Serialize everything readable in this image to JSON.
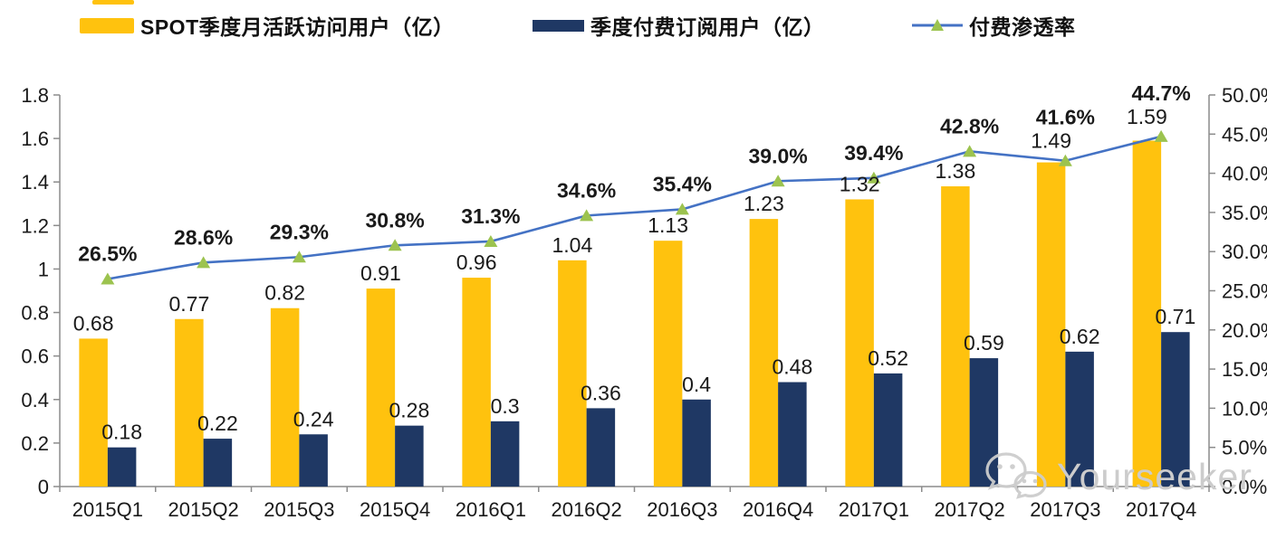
{
  "legend": [
    {
      "label": "SPOT季度月活跃访问用户（亿）",
      "swatch": "bar",
      "color": "#FFC20E"
    },
    {
      "label": "季度付费订阅用户（亿）",
      "swatch": "bar",
      "color": "#1F3864"
    },
    {
      "label": "付费渗透率",
      "swatch": "line",
      "color": "#4472C4",
      "marker_color": "#9CC34F"
    }
  ],
  "colors": {
    "mau_bar": "#FFC20E",
    "subs_bar": "#1F3864",
    "line": "#4472C4",
    "marker": "#9CC34F",
    "axis": "#8C8C8C",
    "text": "#1A1A1A",
    "watermark": "#CCCCCC"
  },
  "watermark": {
    "text": "Yourseeker",
    "icon": "wechat-icon"
  },
  "chart_data": {
    "type": "bar+line-combo",
    "categories": [
      "2015Q1",
      "2015Q2",
      "2015Q3",
      "2015Q4",
      "2016Q1",
      "2016Q2",
      "2016Q3",
      "2016Q4",
      "2017Q1",
      "2017Q2",
      "2017Q3",
      "2017Q4"
    ],
    "series": [
      {
        "name": "SPOT季度月活跃访问用户（亿）",
        "type": "bar",
        "axis": "left",
        "color": "#FFC20E",
        "values": [
          0.68,
          0.77,
          0.82,
          0.91,
          0.96,
          1.04,
          1.13,
          1.23,
          1.32,
          1.38,
          1.49,
          1.59
        ]
      },
      {
        "name": "季度付费订阅用户（亿）",
        "type": "bar",
        "axis": "left",
        "color": "#1F3864",
        "values": [
          0.18,
          0.22,
          0.24,
          0.28,
          0.3,
          0.36,
          0.4,
          0.48,
          0.52,
          0.59,
          0.62,
          0.71
        ]
      },
      {
        "name": "付费渗透率",
        "type": "line",
        "axis": "right",
        "color": "#4472C4",
        "marker": "triangle",
        "marker_color": "#9CC34F",
        "values": [
          26.5,
          28.6,
          29.3,
          30.8,
          31.3,
          34.6,
          35.4,
          39.0,
          39.4,
          42.8,
          41.6,
          44.7
        ]
      }
    ],
    "left_axis": {
      "min": 0,
      "max": 1.8,
      "tick_labels": [
        "0",
        "0.2",
        "0.4",
        "0.6",
        "0.8",
        "1",
        "1.2",
        "1.4",
        "1.6",
        "1.8"
      ]
    },
    "right_axis": {
      "min": 0,
      "max": 50,
      "tick_labels": [
        "0.0%",
        "5.0%",
        "10.0%",
        "15.0%",
        "20.0%",
        "25.0%",
        "30.0%",
        "35.0%",
        "40.0%",
        "45.0%",
        "50.0%"
      ]
    },
    "grid": false,
    "legend_position": "top"
  }
}
